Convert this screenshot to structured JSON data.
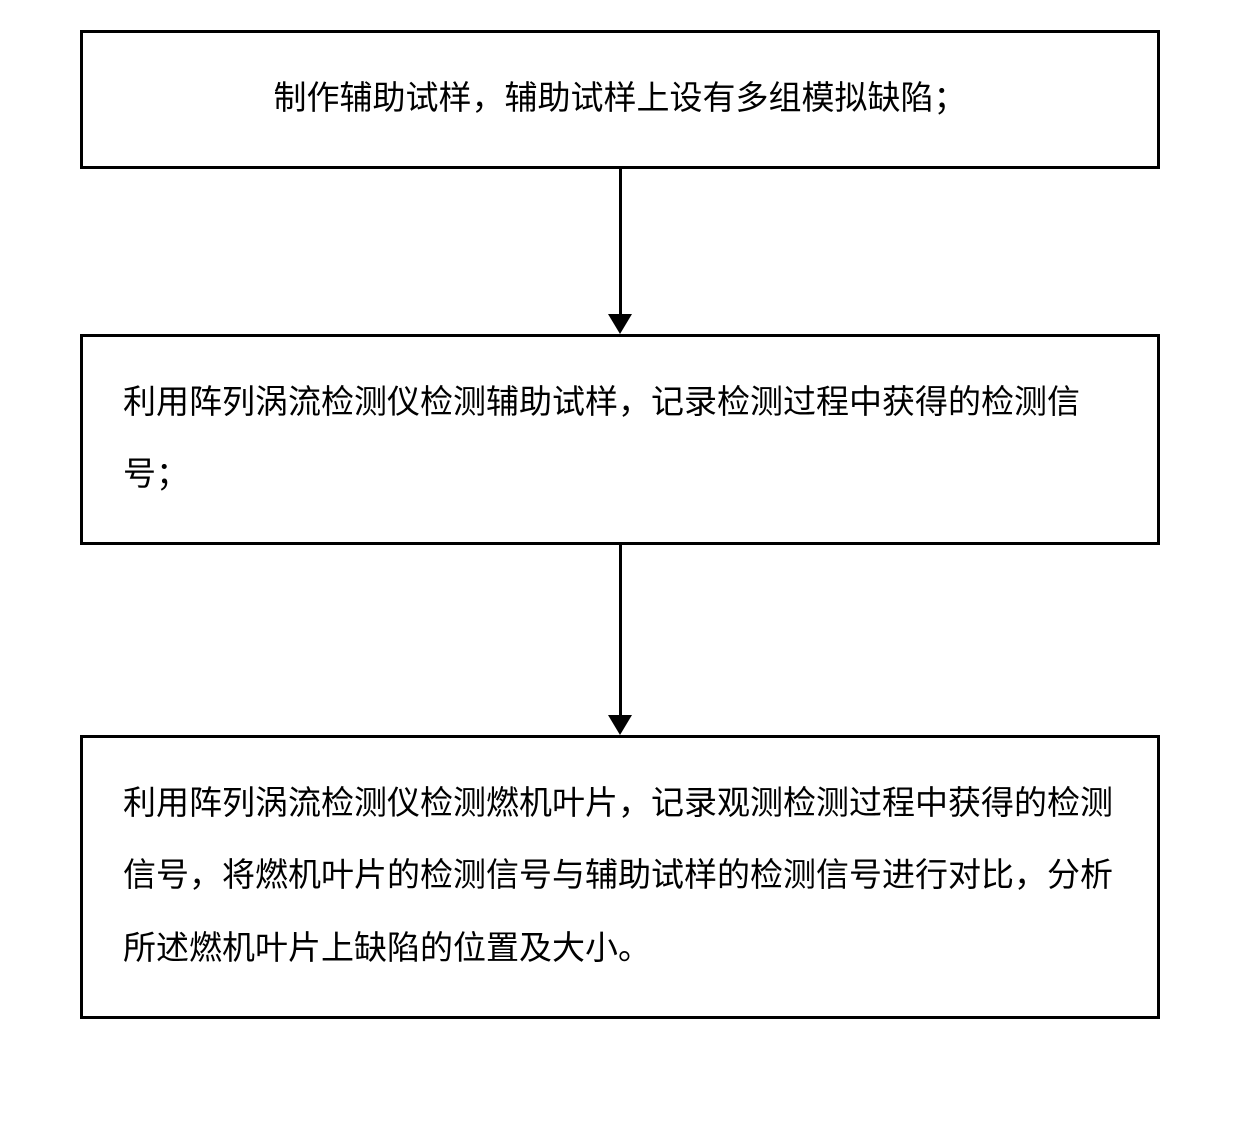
{
  "flowchart": {
    "type": "flowchart",
    "background_color": "#ffffff",
    "border_color": "#000000",
    "border_width": 3,
    "text_color": "#000000",
    "font_size": 33,
    "line_height": 2.2,
    "arrow_heights": [
      145,
      170
    ],
    "arrow_width": 3,
    "arrow_head_width": 24,
    "arrow_head_height": 20,
    "nodes": [
      {
        "id": "step1",
        "text": "制作辅助试样，辅助试样上设有多组模拟缺陷；",
        "centered": true
      },
      {
        "id": "step2",
        "text": "利用阵列涡流检测仪检测辅助试样，记录检测过程中获得的检测信号；",
        "centered": false
      },
      {
        "id": "step3",
        "text": "利用阵列涡流检测仪检测燃机叶片，记录观测检测过程中获得的检测信号，将燃机叶片的检测信号与辅助试样的检测信号进行对比，分析所述燃机叶片上缺陷的位置及大小。",
        "centered": false
      }
    ]
  }
}
